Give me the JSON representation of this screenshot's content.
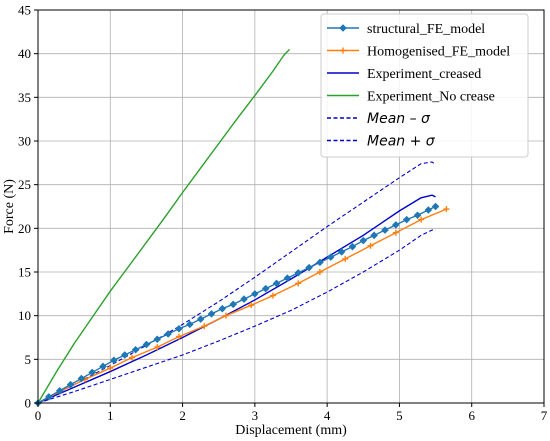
{
  "chart_data": {
    "type": "line",
    "xlabel": "Displacement (mm)",
    "ylabel": "Force (N)",
    "xlim": [
      0,
      7
    ],
    "ylim": [
      0,
      45
    ],
    "xticks": [
      0,
      1,
      2,
      3,
      4,
      5,
      6,
      7
    ],
    "yticks": [
      0,
      5,
      10,
      15,
      20,
      25,
      30,
      35,
      40,
      45
    ],
    "xtick_labels": [
      "0",
      "1",
      "2",
      "3",
      "4",
      "5",
      "6",
      "7"
    ],
    "ytick_labels": [
      "0",
      "5",
      "10",
      "15",
      "20",
      "25",
      "30",
      "35",
      "40",
      "45"
    ],
    "grid": true,
    "legend_position": "top-right",
    "series": [
      {
        "name": "structural_FE_model",
        "color": "#1f77b4",
        "style": "solid",
        "marker": "diamond",
        "x": [
          0,
          0.15,
          0.3,
          0.45,
          0.6,
          0.75,
          0.9,
          1.05,
          1.2,
          1.35,
          1.5,
          1.65,
          1.8,
          1.95,
          2.1,
          2.25,
          2.4,
          2.55,
          2.7,
          2.85,
          3.0,
          3.15,
          3.3,
          3.45,
          3.6,
          3.75,
          3.9,
          4.05,
          4.2,
          4.35,
          4.5,
          4.65,
          4.8,
          4.95,
          5.1,
          5.25,
          5.4,
          5.5
        ],
        "y": [
          0,
          0.7,
          1.4,
          2.1,
          2.8,
          3.5,
          4.2,
          4.9,
          5.5,
          6.1,
          6.7,
          7.3,
          7.9,
          8.5,
          9.0,
          9.6,
          10.2,
          10.8,
          11.3,
          11.9,
          12.5,
          13.1,
          13.7,
          14.3,
          14.9,
          15.5,
          16.1,
          16.7,
          17.3,
          17.9,
          18.6,
          19.2,
          19.8,
          20.4,
          21.0,
          21.5,
          22.1,
          22.5
        ]
      },
      {
        "name": "Homogenised_FE_model",
        "color": "#ff7f0e",
        "style": "solid",
        "marker": "plus",
        "x": [
          0,
          0.3,
          0.65,
          1.0,
          1.3,
          1.65,
          1.95,
          2.3,
          2.6,
          2.95,
          3.25,
          3.6,
          3.9,
          4.25,
          4.6,
          4.95,
          5.3,
          5.65
        ],
        "y": [
          0,
          1.3,
          2.7,
          4.0,
          5.2,
          6.4,
          7.6,
          8.8,
          10.0,
          11.2,
          12.3,
          13.7,
          15.0,
          16.5,
          18.0,
          19.5,
          21.0,
          22.2
        ]
      },
      {
        "name": "Experiment_creased",
        "color": "#0000cc",
        "style": "solid",
        "marker": "none",
        "x": [
          0,
          0.5,
          1.0,
          1.5,
          2.0,
          2.5,
          3.0,
          3.5,
          4.0,
          4.5,
          5.0,
          5.3,
          5.45,
          5.5
        ],
        "y": [
          0,
          1.8,
          3.6,
          5.5,
          7.5,
          9.6,
          11.8,
          14.2,
          16.7,
          19.2,
          22.0,
          23.5,
          23.8,
          23.6
        ]
      },
      {
        "name": "Experiment_No crease",
        "color": "#2ca02c",
        "style": "solid",
        "marker": "none",
        "x": [
          0,
          0.25,
          0.5,
          0.75,
          1.0,
          1.25,
          1.5,
          1.75,
          2.0,
          2.25,
          2.5,
          2.75,
          3.0,
          3.25,
          3.4,
          3.48
        ],
        "y": [
          0,
          3.5,
          6.8,
          9.8,
          12.8,
          15.6,
          18.4,
          21.2,
          24.1,
          26.9,
          29.7,
          32.5,
          35.2,
          38.0,
          39.8,
          40.5
        ]
      },
      {
        "name": "Mean – σ",
        "color": "#0000cc",
        "style": "dashed",
        "marker": "none",
        "x": [
          0,
          0.5,
          1.0,
          1.5,
          2.0,
          2.5,
          3.0,
          3.5,
          4.0,
          4.5,
          5.0,
          5.3,
          5.45,
          5.5
        ],
        "y": [
          0,
          1.3,
          2.7,
          4.1,
          5.5,
          7.1,
          8.8,
          10.6,
          12.7,
          15.0,
          17.5,
          19.2,
          19.8,
          19.8
        ]
      },
      {
        "name": "Mean + σ",
        "color": "#0000cc",
        "style": "dashed",
        "marker": "none",
        "x": [
          0,
          0.5,
          1.0,
          1.5,
          2.0,
          2.5,
          3.0,
          3.5,
          4.0,
          4.5,
          5.0,
          5.3,
          5.45,
          5.5
        ],
        "y": [
          0,
          2.1,
          4.3,
          6.6,
          9.0,
          11.6,
          14.4,
          17.3,
          20.2,
          23.0,
          25.8,
          27.4,
          27.6,
          27.3
        ]
      }
    ]
  }
}
